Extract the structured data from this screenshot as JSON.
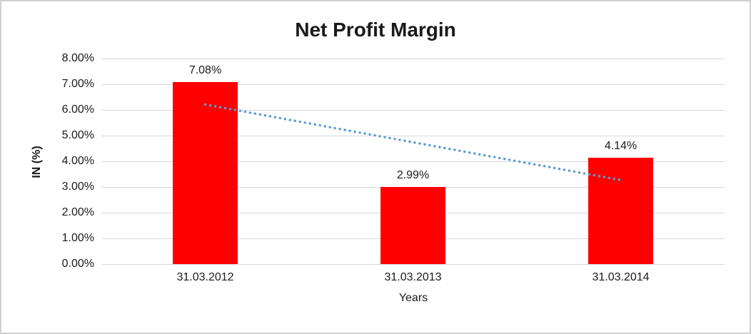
{
  "chart_data": {
    "type": "bar",
    "title": "Net Profit Margin",
    "xlabel": "Years",
    "ylabel": "IN (%)",
    "categories": [
      "31.03.2012",
      "31.03.2013",
      "31.03.2014"
    ],
    "values": [
      7.08,
      2.99,
      4.14
    ],
    "data_labels": [
      "7.08%",
      "2.99%",
      "4.14%"
    ],
    "y_ticks": [
      "8.00%",
      "7.00%",
      "6.00%",
      "5.00%",
      "4.00%",
      "3.00%",
      "2.00%",
      "1.00%",
      "0.00%"
    ],
    "ylim": [
      0,
      8
    ],
    "y_tick_step": 1,
    "grid": true,
    "legend": "none",
    "bar_color": "#ff0000",
    "text_color": "#1a1a1a",
    "gridline_color": "#d9d9d9",
    "trendline": {
      "type": "linear",
      "style": "dotted",
      "color": "#5b9bd5",
      "start_value": 6.21,
      "end_value": 3.27
    }
  }
}
